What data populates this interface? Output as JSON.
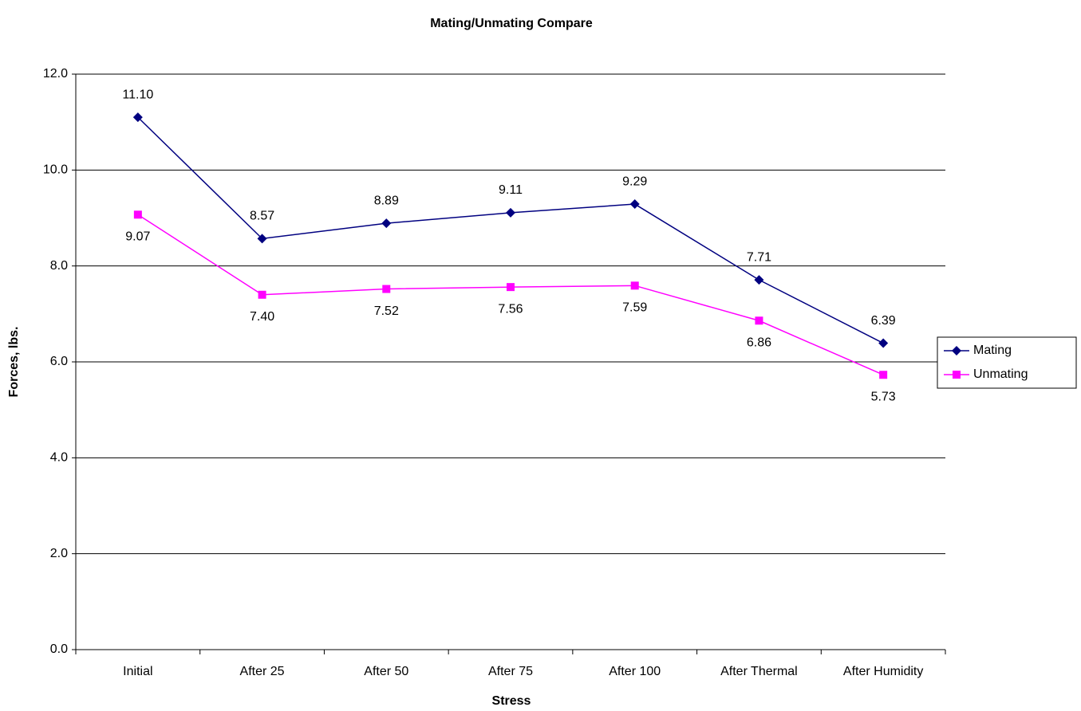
{
  "chart_data": {
    "type": "line",
    "title": "Mating/Unmating Compare",
    "x_label": "Stress",
    "y_label": "Forces, lbs.",
    "categories": [
      "Initial",
      "After 25",
      "After 50",
      "After 75",
      "After 100",
      "After Thermal",
      "After Humidity"
    ],
    "series": [
      {
        "name": "Mating",
        "color": "#000080",
        "marker": "diamond",
        "values": [
          11.1,
          8.57,
          8.89,
          9.11,
          9.29,
          7.71,
          6.39
        ],
        "value_labels": [
          "11.10",
          "8.57",
          "8.89",
          "9.11",
          "9.29",
          "7.71",
          "6.39"
        ]
      },
      {
        "name": "Unmating",
        "color": "#ff00ff",
        "marker": "square",
        "values": [
          9.07,
          7.4,
          7.52,
          7.56,
          7.59,
          6.86,
          5.73
        ],
        "value_labels": [
          "9.07",
          "7.40",
          "7.52",
          "7.56",
          "7.59",
          "6.86",
          "5.73"
        ]
      }
    ],
    "ylim": [
      0,
      12
    ],
    "yticks": [
      {
        "value": 0,
        "label": "0.0"
      },
      {
        "value": 2,
        "label": "2.0"
      },
      {
        "value": 4,
        "label": "4.0"
      },
      {
        "value": 6,
        "label": "6.0"
      },
      {
        "value": 8,
        "label": "8.0"
      },
      {
        "value": 10,
        "label": "10.0"
      },
      {
        "value": 12,
        "label": "12.0"
      }
    ],
    "grid": true,
    "legend": "right"
  }
}
